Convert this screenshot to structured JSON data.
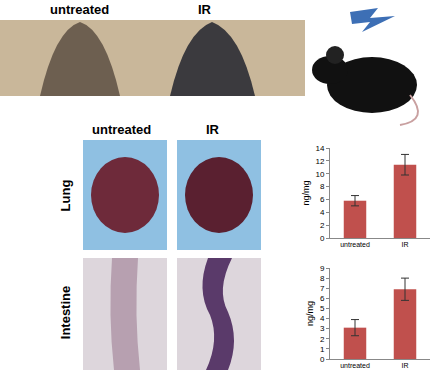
{
  "figure": {
    "photo_labels_top": [
      "untreated",
      "IR"
    ],
    "photo_labels_organs": [
      "untreated",
      "IR"
    ],
    "row_labels": [
      "Lung",
      "Intestine"
    ]
  },
  "chart_data": [
    {
      "type": "bar",
      "categories": [
        "untreated",
        "IR"
      ],
      "values": [
        5.8,
        11.4
      ],
      "errors": [
        0.8,
        1.6
      ],
      "color": "#c0504d",
      "ylabel": "ng/mg",
      "ylim": [
        0,
        14
      ],
      "yticks": [
        0,
        2,
        4,
        6,
        8,
        10,
        12,
        14
      ],
      "grid": false
    },
    {
      "type": "bar",
      "categories": [
        "untreated",
        "IR"
      ],
      "values": [
        3.1,
        6.9
      ],
      "errors": [
        0.8,
        1.1
      ],
      "color": "#c0504d",
      "ylabel": "ng/mg",
      "ylim": [
        0,
        9
      ],
      "yticks": [
        0,
        1,
        2,
        3,
        4,
        5,
        6,
        7,
        8,
        9
      ],
      "grid": false
    }
  ]
}
